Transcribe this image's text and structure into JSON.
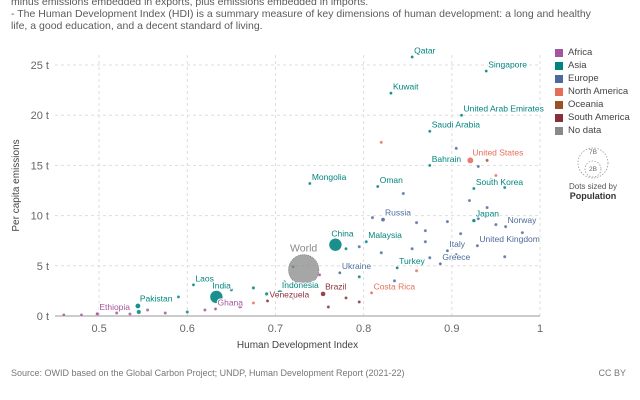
{
  "subtitle": {
    "line1": "minus emissions embedded in exports, plus emissions embedded in imports.",
    "line2": "- The Human Development Index (HDI) is a summary measure of key dimensions of human development: a long and healthy",
    "line3": "life, a good education, and a decent standard of living."
  },
  "footer": {
    "source": "Source: OWID based on the Global Carbon Project; UNDP, Human Development Report (2021-22)",
    "license": "CC BY"
  },
  "legend": {
    "items": [
      {
        "label": "Africa",
        "color": "#a2559c"
      },
      {
        "label": "Asia",
        "color": "#00847e"
      },
      {
        "label": "Europe",
        "color": "#4c6a9c"
      },
      {
        "label": "North America",
        "color": "#e56e5a"
      },
      {
        "label": "Oceania",
        "color": "#9a5129"
      },
      {
        "label": "South America",
        "color": "#883039"
      },
      {
        "label": "No data",
        "color": "#888888"
      }
    ]
  },
  "size_legend": {
    "big": "7B",
    "small": "2B",
    "note": "Dots sized by",
    "variable": "Population"
  },
  "chart_data": {
    "type": "scatter",
    "xlabel": "Human Development Index",
    "ylabel": "Per capita emissions",
    "xlim": [
      0.45,
      1.0
    ],
    "ylim": [
      0,
      26
    ],
    "xticks": [
      0.5,
      0.6,
      0.7,
      0.8,
      0.9,
      1
    ],
    "xtick_labels": [
      "0.5",
      "0.6",
      "0.7",
      "0.8",
      "0.9",
      "1"
    ],
    "yticks": [
      0,
      5,
      10,
      15,
      20,
      25
    ],
    "ytick_labels": [
      "0 t",
      "5 t",
      "10 t",
      "15 t",
      "20 t",
      "25 t"
    ],
    "labeled_points": [
      {
        "name": "Qatar",
        "x": 0.855,
        "y": 25.8,
        "region": "Asia",
        "pop": 0.003
      },
      {
        "name": "Singapore",
        "x": 0.939,
        "y": 24.4,
        "region": "Asia",
        "pop": 0.006
      },
      {
        "name": "Kuwait",
        "x": 0.831,
        "y": 22.2,
        "region": "Asia",
        "pop": 0.004
      },
      {
        "name": "United Arab Emirates",
        "x": 0.911,
        "y": 20.0,
        "region": "Asia",
        "pop": 0.009
      },
      {
        "name": "Saudi Arabia",
        "x": 0.875,
        "y": 18.4,
        "region": "Asia",
        "pop": 0.036
      },
      {
        "name": "United States",
        "x": 0.921,
        "y": 15.5,
        "region": "North America",
        "pop": 0.33
      },
      {
        "name": "Bahrain",
        "x": 0.875,
        "y": 15.0,
        "region": "Asia",
        "pop": 0.0015
      },
      {
        "name": "Mongolia",
        "x": 0.739,
        "y": 13.2,
        "region": "Asia",
        "pop": 0.003
      },
      {
        "name": "Oman",
        "x": 0.816,
        "y": 12.9,
        "region": "Asia",
        "pop": 0.005
      },
      {
        "name": "South Korea",
        "x": 0.925,
        "y": 12.7,
        "region": "Asia",
        "pop": 0.052
      },
      {
        "name": "Russia",
        "x": 0.822,
        "y": 9.6,
        "region": "Europe",
        "pop": 0.145
      },
      {
        "name": "Japan",
        "x": 0.925,
        "y": 9.5,
        "region": "Asia",
        "pop": 0.125
      },
      {
        "name": "Norway",
        "x": 0.961,
        "y": 8.9,
        "region": "Europe",
        "pop": 0.005
      },
      {
        "name": "Malaysia",
        "x": 0.803,
        "y": 7.4,
        "region": "Asia",
        "pop": 0.033
      },
      {
        "name": "China",
        "x": 0.768,
        "y": 7.1,
        "region": "Asia",
        "pop": 1.41
      },
      {
        "name": "United Kingdom",
        "x": 0.929,
        "y": 7.0,
        "region": "Europe",
        "pop": 0.067
      },
      {
        "name": "Italy",
        "x": 0.895,
        "y": 6.5,
        "region": "Europe",
        "pop": 0.059
      },
      {
        "name": "World",
        "x": 0.732,
        "y": 4.6,
        "region": "No data",
        "pop": 7.9
      },
      {
        "name": "Greece",
        "x": 0.887,
        "y": 5.2,
        "region": "Europe",
        "pop": 0.01
      },
      {
        "name": "Turkey",
        "x": 0.838,
        "y": 4.8,
        "region": "Asia",
        "pop": 0.085
      },
      {
        "name": "Ukraine",
        "x": 0.773,
        "y": 4.3,
        "region": "Europe",
        "pop": 0.04
      },
      {
        "name": "Laos",
        "x": 0.607,
        "y": 3.1,
        "region": "Asia",
        "pop": 0.007
      },
      {
        "name": "India",
        "x": 0.633,
        "y": 1.9,
        "region": "Asia",
        "pop": 1.41
      },
      {
        "name": "Indonesia",
        "x": 0.705,
        "y": 2.3,
        "region": "Asia",
        "pop": 0.27
      },
      {
        "name": "Costa Rica",
        "x": 0.809,
        "y": 2.3,
        "region": "North America",
        "pop": 0.005
      },
      {
        "name": "Brazil",
        "x": 0.754,
        "y": 2.2,
        "region": "South America",
        "pop": 0.21
      },
      {
        "name": "Pakistan",
        "x": 0.544,
        "y": 1.0,
        "region": "Asia",
        "pop": 0.23
      },
      {
        "name": "Venezuela",
        "x": 0.691,
        "y": 1.5,
        "region": "South America",
        "pop": 0.028
      },
      {
        "name": "Ghana",
        "x": 0.632,
        "y": 0.7,
        "region": "Africa",
        "pop": 0.032
      },
      {
        "name": "Ethiopia",
        "x": 0.498,
        "y": 0.2,
        "region": "Africa",
        "pop": 0.12
      }
    ],
    "unlabeled_points": [
      {
        "x": 0.82,
        "y": 17.3,
        "region": "North America",
        "pop": 0.001
      },
      {
        "x": 0.905,
        "y": 16.7,
        "region": "Europe",
        "pop": 0.01
      },
      {
        "x": 0.94,
        "y": 15.5,
        "region": "Oceania",
        "pop": 0.026
      },
      {
        "x": 0.93,
        "y": 14.9,
        "region": "Europe",
        "pop": 0.011
      },
      {
        "x": 0.95,
        "y": 14.0,
        "region": "North America",
        "pop": 0.038
      },
      {
        "x": 0.945,
        "y": 13.6,
        "region": "Europe",
        "pop": 0.0006
      },
      {
        "x": 0.96,
        "y": 12.8,
        "region": "Asia",
        "pop": 0.009
      },
      {
        "x": 0.845,
        "y": 12.2,
        "region": "Europe",
        "pop": 0.001
      },
      {
        "x": 0.92,
        "y": 11.5,
        "region": "Europe",
        "pop": 0.005
      },
      {
        "x": 0.94,
        "y": 10.8,
        "region": "Europe",
        "pop": 0.008
      },
      {
        "x": 0.81,
        "y": 9.8,
        "region": "Europe",
        "pop": 0.01
      },
      {
        "x": 0.86,
        "y": 9.3,
        "region": "Europe",
        "pop": 0.006
      },
      {
        "x": 0.895,
        "y": 9.4,
        "region": "Europe",
        "pop": 0.083
      },
      {
        "x": 0.93,
        "y": 9.7,
        "region": "Europe",
        "pop": 0.017
      },
      {
        "x": 0.95,
        "y": 9.1,
        "region": "Europe",
        "pop": 0.006
      },
      {
        "x": 0.98,
        "y": 8.3,
        "region": "Europe",
        "pop": 0.009
      },
      {
        "x": 0.87,
        "y": 8.5,
        "region": "Europe",
        "pop": 0.038
      },
      {
        "x": 0.91,
        "y": 8.2,
        "region": "Europe",
        "pop": 0.067
      },
      {
        "x": 0.84,
        "y": 7.8,
        "region": "Asia",
        "pop": 0.02
      },
      {
        "x": 0.78,
        "y": 6.7,
        "region": "Asia",
        "pop": 0.035
      },
      {
        "x": 0.795,
        "y": 6.9,
        "region": "Europe",
        "pop": 0.007
      },
      {
        "x": 0.82,
        "y": 6.3,
        "region": "Europe",
        "pop": 0.004
      },
      {
        "x": 0.855,
        "y": 6.7,
        "region": "Europe",
        "pop": 0.019
      },
      {
        "x": 0.87,
        "y": 7.4,
        "region": "Europe",
        "pop": 0.006
      },
      {
        "x": 0.875,
        "y": 5.8,
        "region": "Europe",
        "pop": 0.01
      },
      {
        "x": 0.905,
        "y": 6.1,
        "region": "Europe",
        "pop": 0.047
      },
      {
        "x": 0.96,
        "y": 5.9,
        "region": "Europe",
        "pop": 0.01
      },
      {
        "x": 0.72,
        "y": 4.9,
        "region": "Asia",
        "pop": 0.019
      },
      {
        "x": 0.75,
        "y": 4.1,
        "region": "Africa",
        "pop": 0.06
      },
      {
        "x": 0.795,
        "y": 3.9,
        "region": "Asia",
        "pop": 0.01
      },
      {
        "x": 0.86,
        "y": 4.5,
        "region": "North America",
        "pop": 0.013
      },
      {
        "x": 0.835,
        "y": 3.5,
        "region": "Europe",
        "pop": 0.003
      },
      {
        "x": 0.71,
        "y": 3.4,
        "region": "Asia",
        "pop": 0.06
      },
      {
        "x": 0.74,
        "y": 3.0,
        "region": "North America",
        "pop": 0.12
      },
      {
        "x": 0.65,
        "y": 2.6,
        "region": "Asia",
        "pop": 0.005
      },
      {
        "x": 0.675,
        "y": 2.8,
        "region": "Asia",
        "pop": 0.099
      },
      {
        "x": 0.69,
        "y": 2.2,
        "region": "Asia",
        "pop": 0.11
      },
      {
        "x": 0.72,
        "y": 1.8,
        "region": "Africa",
        "pop": 0.045
      },
      {
        "x": 0.78,
        "y": 1.8,
        "region": "South America",
        "pop": 0.051
      },
      {
        "x": 0.795,
        "y": 1.4,
        "region": "South America",
        "pop": 0.033
      },
      {
        "x": 0.76,
        "y": 0.9,
        "region": "South America",
        "pop": 0.018
      },
      {
        "x": 0.675,
        "y": 1.3,
        "region": "North America",
        "pop": 0.01
      },
      {
        "x": 0.59,
        "y": 1.9,
        "region": "Asia",
        "pop": 0.024
      },
      {
        "x": 0.58,
        "y": 1.5,
        "region": "Africa",
        "pop": 0.03
      },
      {
        "x": 0.66,
        "y": 1.0,
        "region": "Africa",
        "pop": 0.2
      },
      {
        "x": 0.62,
        "y": 0.6,
        "region": "Africa",
        "pop": 0.017
      },
      {
        "x": 0.555,
        "y": 0.6,
        "region": "Africa",
        "pop": 0.05
      },
      {
        "x": 0.545,
        "y": 0.4,
        "region": "Asia",
        "pop": 0.17
      },
      {
        "x": 0.52,
        "y": 0.3,
        "region": "Africa",
        "pop": 0.045
      },
      {
        "x": 0.48,
        "y": 0.1,
        "region": "Africa",
        "pop": 0.02
      },
      {
        "x": 0.46,
        "y": 0.1,
        "region": "Africa",
        "pop": 0.011
      },
      {
        "x": 0.535,
        "y": 0.2,
        "region": "Africa",
        "pop": 0.06
      },
      {
        "x": 0.575,
        "y": 0.3,
        "region": "Africa",
        "pop": 0.028
      },
      {
        "x": 0.6,
        "y": 0.4,
        "region": "Asia",
        "pop": 0.03
      }
    ]
  }
}
